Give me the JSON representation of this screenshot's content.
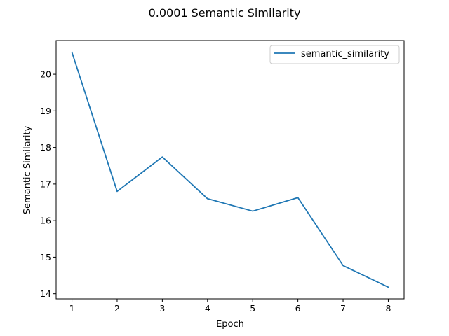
{
  "chart_data": {
    "type": "line",
    "title": "0.0001 Semantic Similarity",
    "xlabel": "Epoch",
    "ylabel": "Semantic Similarity",
    "x": [
      1,
      2,
      3,
      4,
      5,
      6,
      7,
      8
    ],
    "series": [
      {
        "name": "semantic_similarity",
        "color": "#1f77b4",
        "values": [
          20.6,
          16.8,
          17.74,
          16.6,
          16.26,
          16.63,
          14.77,
          14.18
        ]
      }
    ],
    "xticks": [
      "1",
      "2",
      "3",
      "4",
      "5",
      "6",
      "7",
      "8"
    ],
    "yticks": [
      "14",
      "15",
      "16",
      "17",
      "18",
      "19",
      "20"
    ],
    "xlim": [
      0.65,
      8.35
    ],
    "ylim": [
      13.86,
      20.92
    ],
    "grid": false,
    "legend": "top-right"
  }
}
